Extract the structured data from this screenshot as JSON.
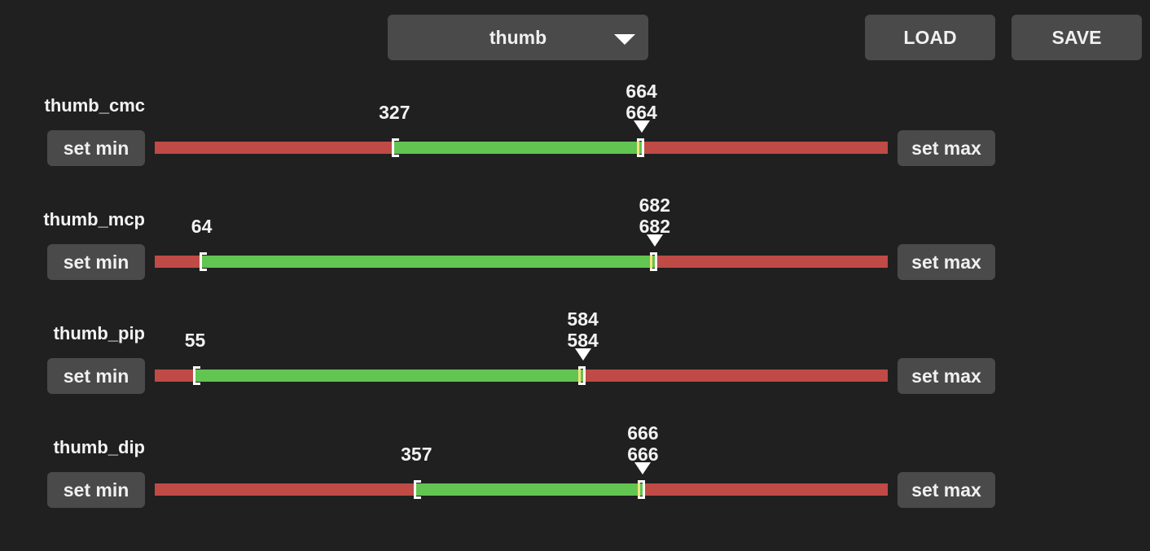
{
  "header": {
    "dropdown_value": "thumb",
    "load_label": "LOAD",
    "save_label": "SAVE"
  },
  "scale": {
    "min": 0,
    "max": 1000
  },
  "colors": {
    "background": "#202020",
    "button": "#4a4a4a",
    "track_out": "#c04a45",
    "track_in": "#62c451",
    "cursor": "#f5e27a"
  },
  "set_min_label": "set min",
  "set_max_label": "set max",
  "joints": [
    {
      "name": "thumb_cmc",
      "min": 327,
      "max": 664,
      "current": 664
    },
    {
      "name": "thumb_mcp",
      "min": 64,
      "max": 682,
      "current": 682
    },
    {
      "name": "thumb_pip",
      "min": 55,
      "max": 584,
      "current": 584
    },
    {
      "name": "thumb_dip",
      "min": 357,
      "max": 666,
      "current": 666
    }
  ]
}
